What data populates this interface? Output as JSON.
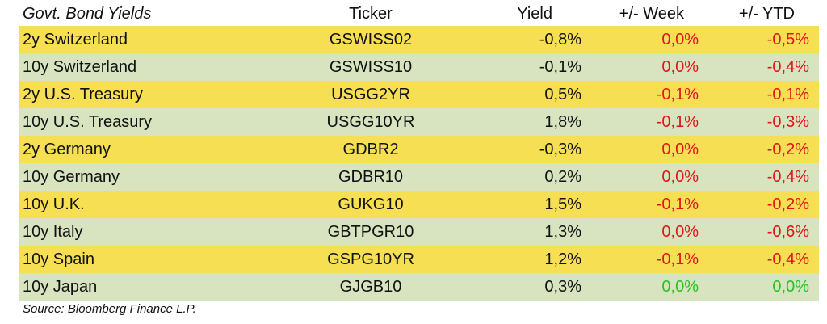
{
  "table": {
    "headers": {
      "name": "Govt. Bond Yields",
      "ticker": "Ticker",
      "yield": "Yield",
      "week": "+/- Week",
      "ytd": "+/- YTD"
    },
    "rows": [
      {
        "name": "2y Switzerland",
        "ticker": "GSWISS02",
        "yield": "-0,8%",
        "week": "0,0%",
        "ytd": "-0,5%",
        "band": "yellow",
        "week_color": "red",
        "ytd_color": "red"
      },
      {
        "name": "10y Switzerland",
        "ticker": "GSWISS10",
        "yield": "-0,1%",
        "week": "0,0%",
        "ytd": "-0,4%",
        "band": "green",
        "week_color": "red",
        "ytd_color": "red"
      },
      {
        "name": "2y U.S. Treasury",
        "ticker": "USGG2YR",
        "yield": "0,5%",
        "week": "-0,1%",
        "ytd": "-0,1%",
        "band": "yellow",
        "week_color": "red",
        "ytd_color": "red"
      },
      {
        "name": "10y U.S. Treasury",
        "ticker": "USGG10YR",
        "yield": "1,8%",
        "week": "-0,1%",
        "ytd": "-0,3%",
        "band": "green",
        "week_color": "red",
        "ytd_color": "red"
      },
      {
        "name": "2y Germany",
        "ticker": "GDBR2",
        "yield": "-0,3%",
        "week": "0,0%",
        "ytd": "-0,2%",
        "band": "yellow",
        "week_color": "red",
        "ytd_color": "red"
      },
      {
        "name": "10y Germany",
        "ticker": "GDBR10",
        "yield": "0,2%",
        "week": "0,0%",
        "ytd": "-0,4%",
        "band": "green",
        "week_color": "red",
        "ytd_color": "red"
      },
      {
        "name": "10y U.K.",
        "ticker": "GUKG10",
        "yield": "1,5%",
        "week": "-0,1%",
        "ytd": "-0,2%",
        "band": "yellow",
        "week_color": "red",
        "ytd_color": "red"
      },
      {
        "name": "10y Italy",
        "ticker": "GBTPGR10",
        "yield": "1,3%",
        "week": "0,0%",
        "ytd": "-0,6%",
        "band": "green",
        "week_color": "red",
        "ytd_color": "red"
      },
      {
        "name": "10y Spain",
        "ticker": "GSPG10YR",
        "yield": "1,2%",
        "week": "-0,1%",
        "ytd": "-0,4%",
        "band": "yellow",
        "week_color": "red",
        "ytd_color": "red"
      },
      {
        "name": "10y Japan",
        "ticker": "GJGB10",
        "yield": "0,3%",
        "week": "0,0%",
        "ytd": "0,0%",
        "band": "green",
        "week_color": "green",
        "ytd_color": "green"
      }
    ]
  },
  "source": "Source: Bloomberg Finance L.P.",
  "colors": {
    "yellow_band": "#f7df54",
    "green_band": "#d8e3c0",
    "negative": "#e3131b",
    "positive": "#22c51f"
  }
}
